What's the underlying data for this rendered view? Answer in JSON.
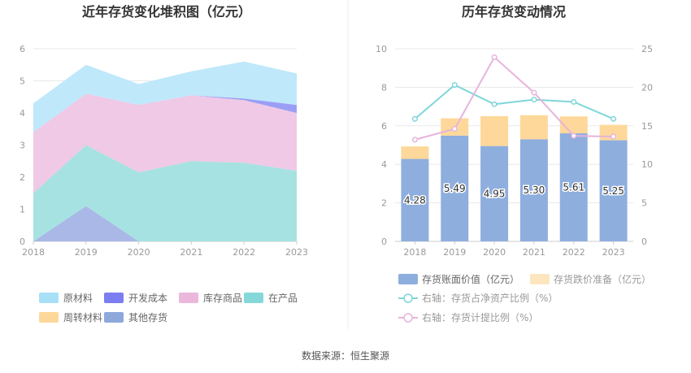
{
  "source_text": "数据来源：恒生聚源",
  "chart_data": [
    {
      "type": "area",
      "stacked": true,
      "title": "近年存货变化堆积图（亿元）",
      "x": [
        "2018",
        "2019",
        "2020",
        "2021",
        "2022",
        "2023"
      ],
      "y_ticks": [
        "0",
        "1",
        "2",
        "3",
        "4",
        "5",
        "6"
      ],
      "ylim": [
        0,
        6
      ],
      "series": [
        {
          "name": "其他存货",
          "color": "#a9b8e6",
          "values": [
            0.0,
            1.1,
            0.0,
            0.0,
            0.0,
            0.0
          ]
        },
        {
          "name": "在产品",
          "color": "#a6e2e1",
          "values": [
            1.5,
            1.9,
            2.15,
            2.5,
            2.45,
            2.2
          ]
        },
        {
          "name": "库存商品",
          "color": "#efc9e5",
          "values": [
            1.9,
            1.6,
            2.1,
            2.05,
            1.95,
            1.8
          ]
        },
        {
          "name": "周转材料",
          "color": "#fdd89a",
          "values": [
            0.0,
            0.0,
            0.0,
            0.0,
            0.0,
            0.0
          ]
        },
        {
          "name": "开发成本",
          "color": "#9b9ef5",
          "values": [
            0.0,
            0.0,
            0.0,
            0.0,
            0.05,
            0.25
          ]
        },
        {
          "name": "原材料",
          "color": "#bfe8fb",
          "values": [
            0.9,
            0.9,
            0.65,
            0.75,
            1.15,
            0.98
          ]
        }
      ],
      "legend": [
        {
          "name": "原材料",
          "color": "#a8e0f8"
        },
        {
          "name": "开发成本",
          "color": "#7b7ef0"
        },
        {
          "name": "库存商品",
          "color": "#ebb8dc"
        },
        {
          "name": "在产品",
          "color": "#86d8d8"
        },
        {
          "name": "周转材料",
          "color": "#fdd89a"
        },
        {
          "name": "其他存货",
          "color": "#8fa8dc"
        }
      ],
      "legend_position": "bottom"
    },
    {
      "type": "bar",
      "stacked": true,
      "title": "历年存货变动情况",
      "categories": [
        "2018",
        "2019",
        "2020",
        "2021",
        "2022",
        "2023"
      ],
      "ylim_left": [
        0,
        10
      ],
      "y_ticks_left": [
        "0",
        "2",
        "4",
        "6",
        "8",
        "10"
      ],
      "ylim_right": [
        0,
        25
      ],
      "y_ticks_right": [
        "0",
        "5",
        "10",
        "15",
        "20",
        "25"
      ],
      "series": [
        {
          "name": "存货账面价值（亿元）",
          "color": "#8eaede",
          "values": [
            4.28,
            5.49,
            4.95,
            5.3,
            5.61,
            5.25
          ],
          "labels": [
            "4.28",
            "5.49",
            "4.95",
            "5.30",
            "5.61",
            "5.25"
          ]
        },
        {
          "name": "存货跌价准备（亿元）",
          "color": "#fdd89a",
          "values": [
            0.65,
            0.9,
            1.55,
            1.25,
            0.88,
            0.8
          ]
        }
      ],
      "lines": [
        {
          "name": "右轴：存货占净资产比例（%）",
          "color": "#7fd6da",
          "values": [
            15.9,
            20.3,
            17.8,
            18.4,
            18.1,
            15.9
          ]
        },
        {
          "name": "右轴：存货计提比例（%）",
          "color": "#e6b4dc",
          "values": [
            13.2,
            14.6,
            23.9,
            19.3,
            13.7,
            13.6
          ]
        }
      ],
      "legend_position": "bottom"
    }
  ]
}
